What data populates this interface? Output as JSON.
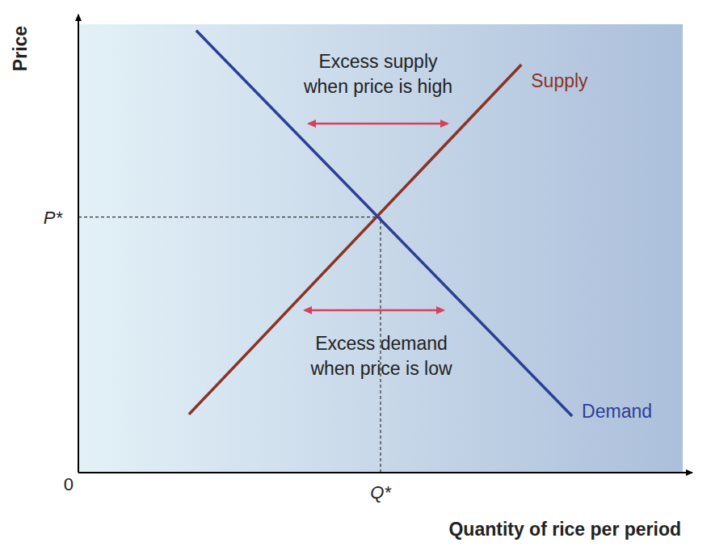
{
  "chart_data": {
    "type": "line",
    "x_label": "Quantity of rice per period",
    "y_label": "Price",
    "series": [
      {
        "name": "Supply",
        "color": "#8a3324",
        "x": [
          18.3,
          73.3
        ],
        "values": [
          13.0,
          91.0
        ]
      },
      {
        "name": "Demand",
        "color": "#2b3f96",
        "x": [
          19.5,
          81.7
        ],
        "values": [
          98.6,
          12.6
        ]
      }
    ],
    "xlim": [
      0,
      100
    ],
    "ylim": [
      0,
      100
    ],
    "xticks": [
      0,
      {
        "value": 50,
        "label": "Q*"
      }
    ],
    "yticks": [
      {
        "value": 57,
        "label": "P*"
      }
    ],
    "grid": false,
    "annotations": [
      {
        "text": [
          "Excess supply",
          "when price is high"
        ]
      },
      {
        "text": [
          "Excess demand",
          "when price is low"
        ]
      }
    ]
  }
}
